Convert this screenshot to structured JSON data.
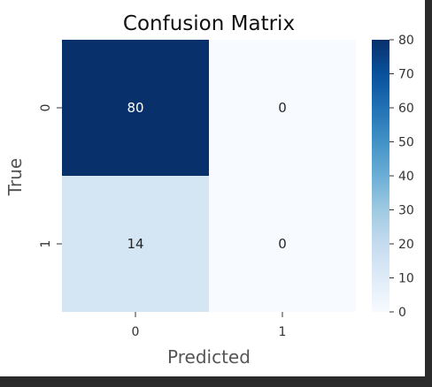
{
  "chart_data": {
    "type": "heatmap",
    "title": "Confusion Matrix",
    "xlabel": "Predicted",
    "ylabel": "True",
    "x_categories": [
      "0",
      "1"
    ],
    "y_categories": [
      "0",
      "1"
    ],
    "values": [
      [
        80,
        0
      ],
      [
        14,
        0
      ]
    ],
    "annotations": [
      [
        "80",
        "0"
      ],
      [
        "14",
        "0"
      ]
    ],
    "colormap": "Blues",
    "colorbar": {
      "range": [
        0,
        80
      ],
      "ticks": [
        "0",
        "10",
        "20",
        "30",
        "40",
        "50",
        "60",
        "70",
        "80"
      ]
    },
    "grid": false
  }
}
